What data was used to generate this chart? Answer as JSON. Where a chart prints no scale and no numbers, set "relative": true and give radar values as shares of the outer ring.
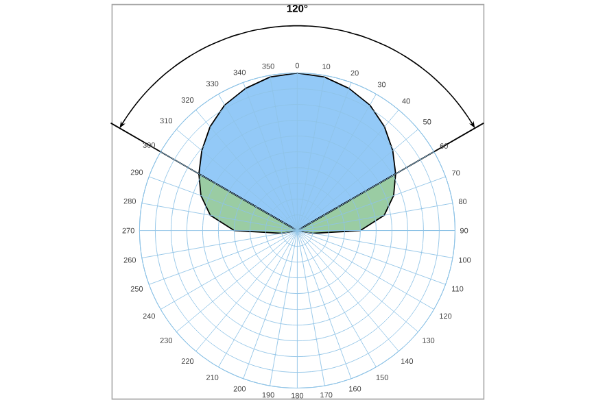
{
  "chart_data": {
    "type": "radar",
    "relative": true,
    "grid": true,
    "categories": [
      "0",
      "10",
      "20",
      "30",
      "40",
      "50",
      "60",
      "70",
      "80",
      "90",
      "100",
      "110",
      "120",
      "130",
      "140",
      "150",
      "160",
      "170",
      "180",
      "190",
      "200",
      "210",
      "220",
      "230",
      "240",
      "250",
      "260",
      "270",
      "280",
      "290",
      "300",
      "310",
      "320",
      "330",
      "340",
      "350"
    ],
    "series": [
      {
        "color": "#93c9f7",
        "values": [
          1.0,
          0.99,
          0.96,
          0.92,
          0.86,
          0.79,
          0.72,
          null,
          null,
          null,
          null,
          null,
          null,
          null,
          null,
          null,
          null,
          null,
          null,
          null,
          null,
          null,
          null,
          null,
          null,
          null,
          null,
          null,
          null,
          null,
          0.72,
          0.79,
          0.86,
          0.92,
          0.96,
          0.99
        ]
      },
      {
        "color": "#9acca3",
        "values": [
          null,
          null,
          null,
          null,
          null,
          null,
          0.72,
          0.65,
          0.56,
          0.4,
          0.1,
          0,
          0,
          0,
          0,
          0,
          0,
          0,
          0,
          0,
          0,
          0,
          0,
          0,
          0,
          0,
          0.1,
          0.4,
          0.56,
          0.65,
          0.72,
          null,
          null,
          null,
          null,
          null
        ]
      }
    ],
    "annotations": [
      "120°"
    ]
  }
}
